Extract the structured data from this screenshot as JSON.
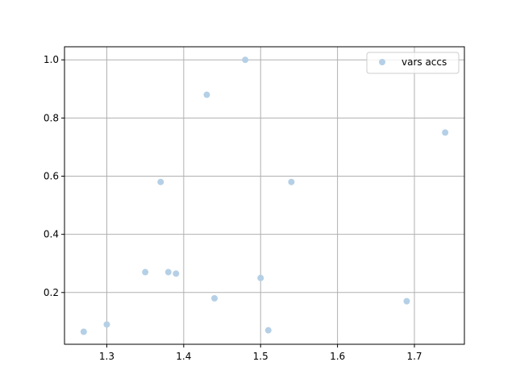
{
  "chart_data": {
    "type": "scatter",
    "title": "",
    "xlabel": "",
    "ylabel": "",
    "xlim": [
      1.245,
      1.765
    ],
    "ylim": [
      0.022,
      1.045
    ],
    "xticks": [
      1.3,
      1.4,
      1.5,
      1.6,
      1.7
    ],
    "xtick_labels": [
      "1.3",
      "1.4",
      "1.5",
      "1.6",
      "1.7"
    ],
    "yticks": [
      0.2,
      0.4,
      0.6,
      0.8,
      1.0
    ],
    "ytick_labels": [
      "0.2",
      "0.4",
      "0.6",
      "0.8",
      "1.0"
    ],
    "grid": true,
    "legend_position": "top-right",
    "series": [
      {
        "name": "vars accs",
        "color": "#b5d0e6",
        "points": [
          {
            "x": 1.27,
            "y": 0.065
          },
          {
            "x": 1.3,
            "y": 0.09
          },
          {
            "x": 1.35,
            "y": 0.27
          },
          {
            "x": 1.37,
            "y": 0.58
          },
          {
            "x": 1.38,
            "y": 0.27
          },
          {
            "x": 1.39,
            "y": 0.265
          },
          {
            "x": 1.43,
            "y": 0.88
          },
          {
            "x": 1.44,
            "y": 0.18
          },
          {
            "x": 1.48,
            "y": 1.0
          },
          {
            "x": 1.5,
            "y": 0.25
          },
          {
            "x": 1.51,
            "y": 0.07
          },
          {
            "x": 1.54,
            "y": 0.58
          },
          {
            "x": 1.69,
            "y": 0.17
          },
          {
            "x": 1.74,
            "y": 0.75
          }
        ]
      }
    ]
  }
}
